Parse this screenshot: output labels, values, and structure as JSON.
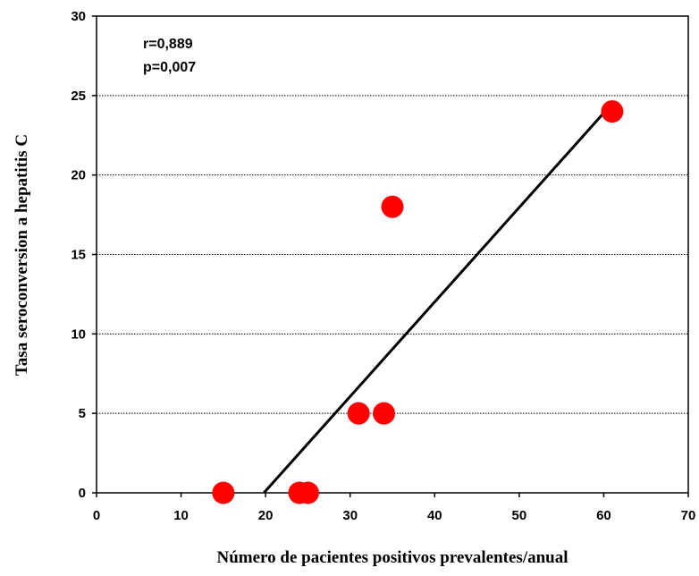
{
  "chart_data": {
    "type": "scatter",
    "xlabel": "Número de pacientes positivos prevalentes/anual",
    "ylabel": "Tasa seroconversion a hepatitis C",
    "xlim": [
      0,
      70
    ],
    "ylim": [
      0,
      30
    ],
    "x_ticks": [
      "0",
      "10",
      "20",
      "30",
      "40",
      "50",
      "60",
      "70"
    ],
    "y_ticks": [
      "0",
      "5",
      "10",
      "15",
      "20",
      "25",
      "30"
    ],
    "grid": "horizontal dotted",
    "annotations": [
      "r=0,889",
      "p=0,007"
    ],
    "points": [
      {
        "x": 15,
        "y": 0
      },
      {
        "x": 24,
        "y": 0
      },
      {
        "x": 25,
        "y": 0
      },
      {
        "x": 31,
        "y": 5
      },
      {
        "x": 34,
        "y": 5
      },
      {
        "x": 35,
        "y": 18
      },
      {
        "x": 61,
        "y": 24
      }
    ],
    "trendline": [
      {
        "x": 19.8,
        "y": 0
      },
      {
        "x": 61,
        "y": 24.5
      }
    ],
    "point_color": "#ff0000",
    "line_color": "#000000"
  }
}
